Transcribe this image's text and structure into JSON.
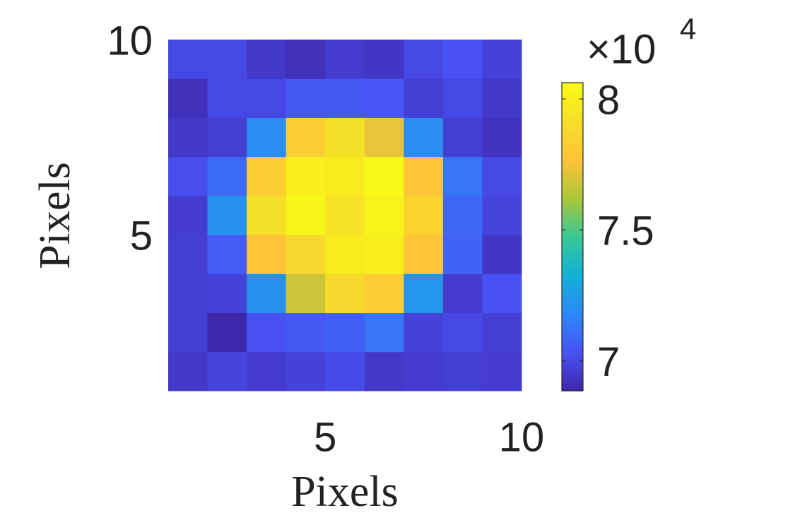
{
  "chart_data": {
    "type": "heatmap",
    "x_label": "Pixels",
    "y_label": "Pixels",
    "x": [
      1.5,
      2.5,
      3.5,
      4.5,
      5.5,
      6.5,
      7.5,
      8.5,
      9.5
    ],
    "y": [
      1.5,
      2.5,
      3.5,
      4.5,
      5.5,
      6.5,
      7.5,
      8.5,
      9.5
    ],
    "z": [
      [
        69500,
        69900,
        69600,
        69800,
        70100,
        69500,
        69600,
        69700,
        69600
      ],
      [
        69700,
        68900,
        70300,
        70500,
        70700,
        71300,
        69800,
        70000,
        69700
      ],
      [
        69700,
        69800,
        72200,
        76800,
        78800,
        78200,
        72300,
        69600,
        70300
      ],
      [
        69700,
        70600,
        77800,
        78800,
        79800,
        80000,
        77800,
        70800,
        69400
      ],
      [
        69600,
        72200,
        79200,
        80300,
        79400,
        80200,
        78600,
        70900,
        69900
      ],
      [
        70200,
        71000,
        78300,
        80000,
        79800,
        80500,
        77800,
        71300,
        70000
      ],
      [
        69500,
        69700,
        72000,
        78300,
        79200,
        77300,
        72000,
        69700,
        69300
      ],
      [
        69200,
        70000,
        70000,
        70500,
        70500,
        70400,
        69700,
        70000,
        69500
      ],
      [
        70000,
        70000,
        69500,
        69200,
        69600,
        69400,
        70000,
        70300,
        69800
      ]
    ],
    "xlim": [
      1,
      10
    ],
    "xticks": [
      5,
      10
    ],
    "ylim": [
      1,
      10
    ],
    "yticks": [
      5,
      10
    ],
    "colormap": "parula",
    "clim": [
      68860,
      80620
    ],
    "cticks": [
      {
        "value": 70000,
        "label": "7"
      },
      {
        "value": 75000,
        "label": "7.5"
      },
      {
        "value": 80000,
        "label": "8"
      }
    ],
    "colorbar_multiplier": "×10",
    "colorbar_exponent": "4"
  }
}
